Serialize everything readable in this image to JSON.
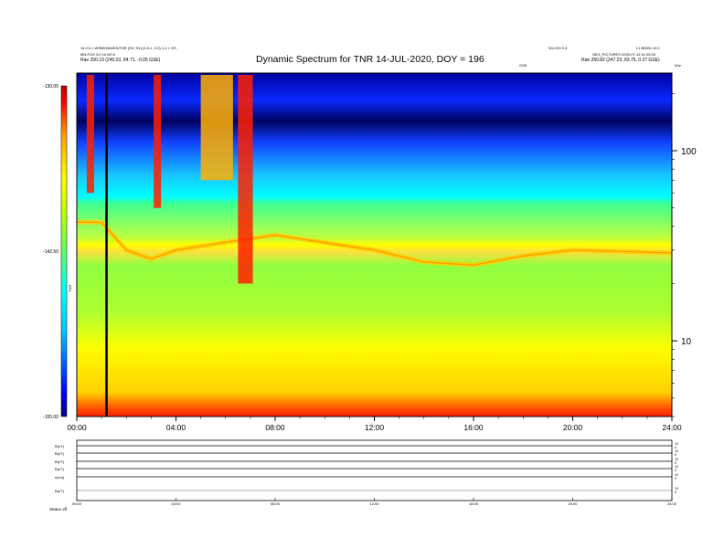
{
  "header": {
    "left_line1": "14 0.0 × WIND/WAVES/TNR (SV, SV) (0.0-1, 0.0) 1.0 × GS",
    "left_line2": "MN-FGS 3.0 ±0.0/0.0",
    "left_line3_label": "Rae",
    "left_line3_value": "250.23 (245.03, 84.71, -0.05 GSE)",
    "right_top_left": "WI-C00 0.0",
    "right_top_right": "L1 B0001 ±0.1",
    "right_line2": "SEG_PICTURES 2020-07-15 11:20:26",
    "right_line3_label": "Rae",
    "right_line3_value": "250.82 (247.23, 83.75, 0.27 GSE)",
    "small_center": "GSE",
    "small_right": "kHz"
  },
  "chart_data": [
    {
      "type": "heatmap",
      "title": "Dynamic Spectrum for TNR 14-JUL-2020, DOY = 196",
      "x_tick_labels": [
        "00:00",
        "04:00",
        "08:00",
        "12:00",
        "16:00",
        "20:00",
        "24:00"
      ],
      "x_range_hours": [
        0,
        24
      ],
      "y_scale": "log",
      "y_unit": "kHz",
      "y_range_khz": [
        4,
        256
      ],
      "y_tick_labels": [
        "10",
        "100"
      ],
      "y_tick_values": [
        10,
        100
      ],
      "colorbar": {
        "label": "TNR",
        "tick_labels": [
          "-130.00",
          "-142.50",
          "-155.00"
        ],
        "tick_values": [
          -130,
          -142.5,
          -155
        ],
        "range": [
          -155,
          -130
        ],
        "colors": [
          "#000080",
          "#0000ff",
          "#00bfff",
          "#00ffff",
          "#40ff80",
          "#80ff00",
          "#ffff00",
          "#ffa000",
          "#ff0000",
          "#a00000"
        ]
      },
      "marker_line_hour": 1.2,
      "features": {
        "plasma_line_khz": [
          {
            "x": 0,
            "y": 42
          },
          {
            "x": 1,
            "y": 42
          },
          {
            "x": 2,
            "y": 30
          },
          {
            "x": 3,
            "y": 27
          },
          {
            "x": 4,
            "y": 30
          },
          {
            "x": 6,
            "y": 33
          },
          {
            "x": 8,
            "y": 36
          },
          {
            "x": 12,
            "y": 30
          },
          {
            "x": 14,
            "y": 26
          },
          {
            "x": 16,
            "y": 25
          },
          {
            "x": 18,
            "y": 28
          },
          {
            "x": 20,
            "y": 30
          },
          {
            "x": 24,
            "y": 29
          }
        ],
        "radio_bursts": [
          {
            "x0": 0.4,
            "x1": 0.7,
            "fmin": 60
          },
          {
            "x0": 3.1,
            "x1": 3.4,
            "fmin": 50
          },
          {
            "x0": 5.0,
            "x1": 6.3,
            "fmin": 70
          },
          {
            "x0": 6.5,
            "x1": 7.1,
            "fmin": 20
          }
        ]
      }
    },
    {
      "type": "line",
      "title": "",
      "rows": [
        {
          "label": "B(nT)",
          "right_ticks": [
            "10",
            "0"
          ]
        },
        {
          "label": "B(nT)",
          "right_ticks": [
            "10",
            "0"
          ]
        },
        {
          "label": "B(nT)",
          "right_ticks": [
            "10",
            "0"
          ]
        },
        {
          "label": "B(nT)",
          "right_ticks": [
            "10",
            "0"
          ]
        },
        {
          "label": "n(cm)",
          "right_ticks": [
            "10",
            "0"
          ]
        },
        {
          "label": "B(nT)",
          "right_ticks": [
            "10",
            "0"
          ]
        }
      ],
      "x_tick_labels": [
        "00:00",
        "04:00",
        "08:00",
        "12:00",
        "16:00",
        "20:00",
        "24:00"
      ],
      "footer_left_label": "Status",
      "footer_left_value": "off"
    }
  ]
}
